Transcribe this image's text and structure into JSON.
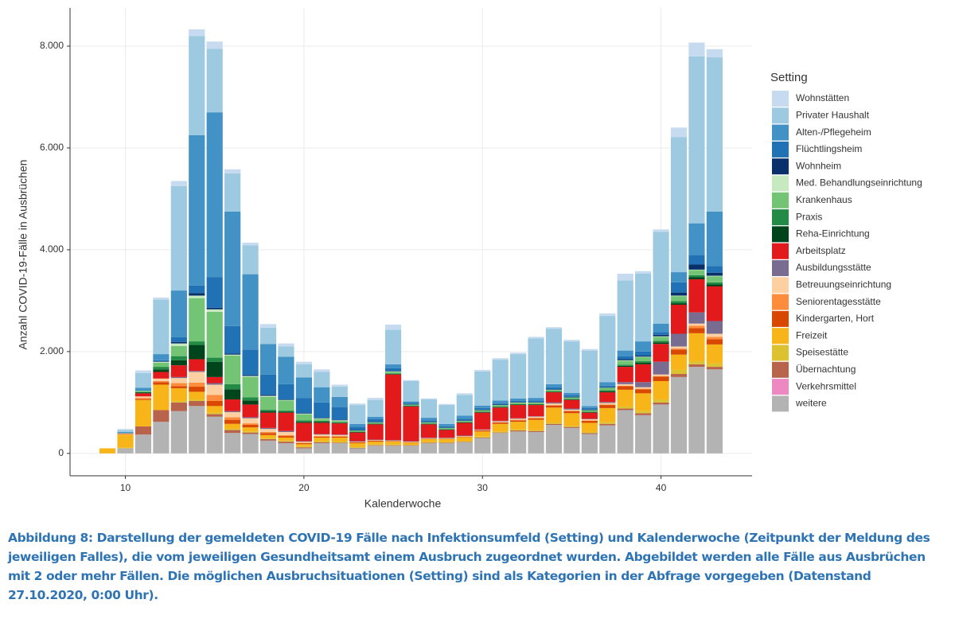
{
  "chart_data": {
    "type": "stacked_bar",
    "y_label": "Anzahl COVID-19-Fälle in Ausbrüchen",
    "x_label": "Kalenderwoche",
    "legend_title": "Setting",
    "legend": "right",
    "grid": true,
    "caption": "Abbildung 8: Darstellung der gemeldeten COVID-19 Fälle nach Infektionsumfeld (Setting) und Kalenderwoche (Zeitpunkt der Meldung des jeweiligen Falles), die vom jeweiligen Gesundheitsamt einem Ausbruch zugeordnet wurden. Abgebildet werden alle Fälle aus Ausbrüchen mit 2 oder mehr Fällen. Die möglichen Ausbruchsituationen (Setting) sind als Kategorien in der Abfrage vorgegeben (Datenstand 27.10.2020, 0:00 Uhr).",
    "xlim": [
      6.9,
      45.1
    ],
    "xticks": [
      10,
      20,
      30,
      40
    ],
    "ylim": [
      -440,
      8750
    ],
    "yticks": [
      0,
      {
        "value": 2000,
        "label": "2.000"
      },
      {
        "value": 4000,
        "label": "4.000"
      },
      {
        "value": 6000,
        "label": "6.000"
      },
      {
        "value": 8000,
        "label": "8.000"
      }
    ],
    "x": [
      9,
      10,
      11,
      12,
      13,
      14,
      15,
      16,
      17,
      18,
      19,
      20,
      21,
      22,
      23,
      24,
      25,
      26,
      27,
      28,
      29,
      30,
      31,
      32,
      33,
      34,
      35,
      36,
      37,
      38,
      39,
      40,
      41,
      42,
      43
    ],
    "series": [
      {
        "name": "Wohnstätten",
        "color": "#c6dbef",
        "values": [
          0,
          20,
          50,
          40,
          100,
          130,
          140,
          80,
          50,
          70,
          60,
          50,
          50,
          40,
          30,
          40,
          100,
          20,
          20,
          20,
          30,
          30,
          30,
          30,
          30,
          30,
          30,
          30,
          50,
          130,
          50,
          50,
          190,
          270,
          160
        ]
      },
      {
        "name": "Privater Haushalt",
        "color": "#9ecae1",
        "values": [
          0,
          40,
          290,
          1070,
          2050,
          1950,
          1250,
          750,
          570,
          320,
          200,
          260,
          300,
          200,
          370,
          330,
          680,
          400,
          360,
          370,
          410,
          670,
          800,
          870,
          1170,
          1090,
          1010,
          1090,
          1300,
          1380,
          1330,
          1800,
          2650,
          3280,
          3030
        ]
      },
      {
        "name": "Alten-/Pflegeheim",
        "color": "#4292c6",
        "values": [
          0,
          20,
          60,
          120,
          920,
          2950,
          3240,
          2250,
          1480,
          600,
          540,
          400,
          300,
          200,
          60,
          50,
          80,
          30,
          50,
          50,
          60,
          50,
          60,
          50,
          50,
          60,
          40,
          40,
          70,
          110,
          200,
          170,
          200,
          620,
          1070
        ]
      },
      {
        "name": "Flüchtlingsheim",
        "color": "#2171b5",
        "values": [
          0,
          0,
          0,
          20,
          90,
          150,
          600,
          540,
          500,
          400,
          300,
          300,
          300,
          250,
          60,
          50,
          50,
          20,
          30,
          20,
          30,
          30,
          20,
          20,
          30,
          40,
          40,
          30,
          30,
          60,
          80,
          50,
          200,
          190,
          130
        ]
      },
      {
        "name": "Wohnheim",
        "color": "#08306b",
        "values": [
          0,
          0,
          0,
          10,
          30,
          50,
          30,
          20,
          20,
          20,
          10,
          10,
          10,
          10,
          10,
          10,
          10,
          10,
          10,
          10,
          10,
          10,
          10,
          10,
          10,
          10,
          10,
          10,
          10,
          20,
          20,
          30,
          60,
          100,
          60
        ]
      },
      {
        "name": "Med. Behandlungseinrichtung",
        "color": "#c7e9c0",
        "values": [
          0,
          0,
          0,
          20,
          50,
          50,
          50,
          20,
          20,
          20,
          10,
          10,
          10,
          10,
          0,
          0,
          10,
          0,
          0,
          0,
          0,
          0,
          0,
          0,
          0,
          0,
          0,
          0,
          0,
          10,
          10,
          10,
          10,
          10,
          10
        ]
      },
      {
        "name": "Krankenhaus",
        "color": "#74c476",
        "values": [
          0,
          10,
          30,
          80,
          200,
          850,
          900,
          560,
          400,
          250,
          200,
          120,
          40,
          30,
          20,
          20,
          30,
          20,
          20,
          20,
          20,
          30,
          30,
          30,
          30,
          30,
          30,
          30,
          50,
          80,
          80,
          80,
          100,
          100,
          120
        ]
      },
      {
        "name": "Praxis",
        "color": "#238b45",
        "values": [
          0,
          0,
          0,
          50,
          80,
          70,
          80,
          100,
          60,
          30,
          20,
          30,
          20,
          10,
          10,
          10,
          10,
          10,
          10,
          10,
          10,
          10,
          10,
          10,
          10,
          10,
          10,
          10,
          20,
          20,
          30,
          30,
          40,
          40,
          40
        ]
      },
      {
        "name": "Reha-Einrichtung",
        "color": "#00441b",
        "values": [
          0,
          0,
          20,
          50,
          100,
          280,
          300,
          200,
          80,
          30,
          20,
          20,
          20,
          10,
          10,
          10,
          10,
          10,
          10,
          10,
          10,
          10,
          10,
          10,
          10,
          10,
          10,
          10,
          20,
          20,
          30,
          30,
          30,
          40,
          40
        ]
      },
      {
        "name": "Arbeitsplatz",
        "color": "#e31a1c",
        "values": [
          0,
          10,
          60,
          130,
          230,
          230,
          120,
          230,
          250,
          300,
          360,
          360,
          220,
          220,
          170,
          300,
          1290,
          680,
          260,
          150,
          250,
          330,
          260,
          260,
          220,
          200,
          170,
          120,
          190,
          300,
          350,
          350,
          570,
          650,
          680
        ]
      },
      {
        "name": "Ausbildungsstätte",
        "color": "#786d91",
        "values": [
          0,
          0,
          0,
          0,
          20,
          20,
          30,
          20,
          20,
          20,
          20,
          10,
          10,
          10,
          10,
          10,
          10,
          10,
          10,
          10,
          10,
          10,
          10,
          10,
          10,
          20,
          20,
          10,
          20,
          40,
          100,
          250,
          250,
          220,
          250
        ]
      },
      {
        "name": "Betreuungseinrichtung",
        "color": "#fdd0a2",
        "values": [
          0,
          10,
          30,
          50,
          100,
          210,
          200,
          100,
          100,
          60,
          60,
          20,
          30,
          20,
          10,
          10,
          10,
          10,
          10,
          10,
          10,
          10,
          20,
          20,
          20,
          30,
          20,
          20,
          30,
          30,
          30,
          30,
          40,
          40,
          60
        ]
      },
      {
        "name": "Seniorentagesstätte",
        "color": "#fd8d3c",
        "values": [
          0,
          0,
          20,
          20,
          60,
          80,
          120,
          50,
          30,
          20,
          20,
          10,
          10,
          10,
          0,
          0,
          0,
          0,
          0,
          0,
          0,
          0,
          0,
          10,
          10,
          10,
          10,
          10,
          10,
          10,
          10,
          10,
          20,
          50,
          50
        ]
      },
      {
        "name": "Kindergarten, Hort",
        "color": "#d94801",
        "values": [
          0,
          0,
          20,
          50,
          40,
          100,
          100,
          80,
          50,
          40,
          30,
          20,
          20,
          20,
          20,
          20,
          10,
          10,
          10,
          10,
          10,
          20,
          30,
          30,
          30,
          40,
          40,
          40,
          60,
          70,
          80,
          90,
          100,
          100,
          100
        ]
      },
      {
        "name": "Freizeit",
        "color": "#f7b519",
        "values": [
          100,
          260,
          520,
          500,
          250,
          150,
          130,
          100,
          80,
          60,
          60,
          40,
          70,
          80,
          70,
          50,
          50,
          40,
          60,
          60,
          80,
          100,
          150,
          150,
          200,
          300,
          250,
          180,
          280,
          330,
          340,
          360,
          300,
          550,
          370
        ]
      },
      {
        "name": "Speisestätte",
        "color": "#dcc230",
        "values": [
          0,
          10,
          0,
          0,
          30,
          30,
          30,
          20,
          20,
          20,
          20,
          20,
          20,
          20,
          20,
          20,
          20,
          10,
          10,
          10,
          10,
          20,
          20,
          20,
          20,
          20,
          20,
          20,
          30,
          40,
          50,
          60,
          80,
          60,
          70
        ]
      },
      {
        "name": "Übernachtung",
        "color": "#b8634c",
        "values": [
          0,
          0,
          160,
          230,
          170,
          100,
          50,
          60,
          30,
          30,
          30,
          20,
          20,
          10,
          10,
          10,
          10,
          10,
          10,
          10,
          10,
          10,
          10,
          20,
          20,
          20,
          20,
          20,
          30,
          30,
          40,
          40,
          60,
          50,
          50
        ]
      },
      {
        "name": "Verkehrsmittel",
        "color": "#ee88c2",
        "values": [
          0,
          0,
          0,
          0,
          0,
          0,
          0,
          0,
          0,
          0,
          0,
          0,
          0,
          0,
          0,
          0,
          0,
          0,
          0,
          0,
          0,
          0,
          0,
          0,
          0,
          0,
          0,
          0,
          0,
          0,
          0,
          0,
          0,
          0,
          0
        ]
      },
      {
        "name": "weitere",
        "color": "#b3b3b3",
        "values": [
          0,
          100,
          370,
          620,
          830,
          930,
          720,
          400,
          380,
          250,
          200,
          100,
          200,
          200,
          100,
          150,
          150,
          150,
          200,
          200,
          220,
          300,
          400,
          430,
          420,
          560,
          500,
          380,
          550,
          850,
          750,
          960,
          1500,
          1700,
          1650
        ]
      }
    ]
  }
}
